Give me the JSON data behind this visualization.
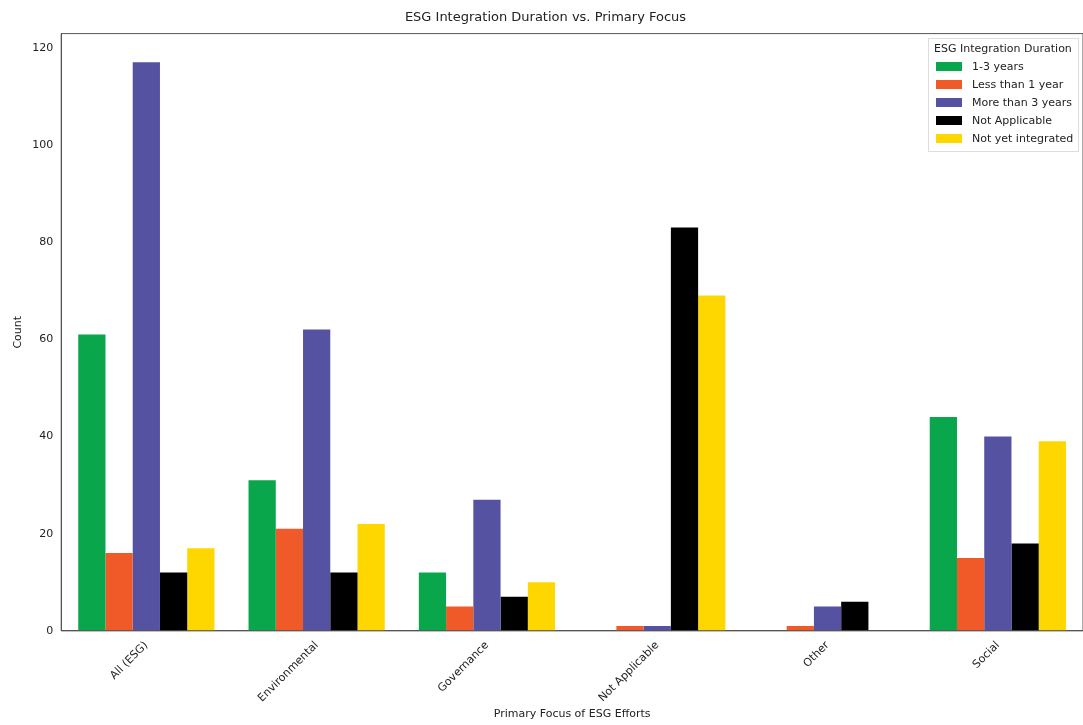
{
  "chart_data": {
    "type": "bar",
    "title": "ESG Integration Duration vs. Primary Focus",
    "xlabel": "Primary Focus of ESG Efforts",
    "ylabel": "Count",
    "legend_title": "ESG Integration Duration",
    "categories": [
      "All (ESG)",
      "Environmental",
      "Governance",
      "Not Applicable",
      "Other",
      "Social"
    ],
    "series": [
      {
        "name": "1-3 years",
        "color": "#0aa64c",
        "values": [
          61,
          31,
          12,
          0,
          0,
          44
        ]
      },
      {
        "name": "Less than 1 year",
        "color": "#f05a28",
        "values": [
          16,
          21,
          5,
          1,
          1,
          15
        ]
      },
      {
        "name": "More than 3 years",
        "color": "#5552a2",
        "values": [
          117,
          62,
          27,
          1,
          5,
          40
        ]
      },
      {
        "name": "Not Applicable",
        "color": "#000000",
        "values": [
          12,
          12,
          7,
          83,
          6,
          18
        ]
      },
      {
        "name": "Not yet integrated",
        "color": "#ffd700",
        "values": [
          17,
          22,
          10,
          69,
          0,
          39
        ]
      }
    ],
    "ylim": [
      0,
      122.9
    ],
    "yticks": [
      0,
      20,
      40,
      60,
      80,
      100,
      120
    ],
    "grid": false,
    "legend": "top right"
  }
}
